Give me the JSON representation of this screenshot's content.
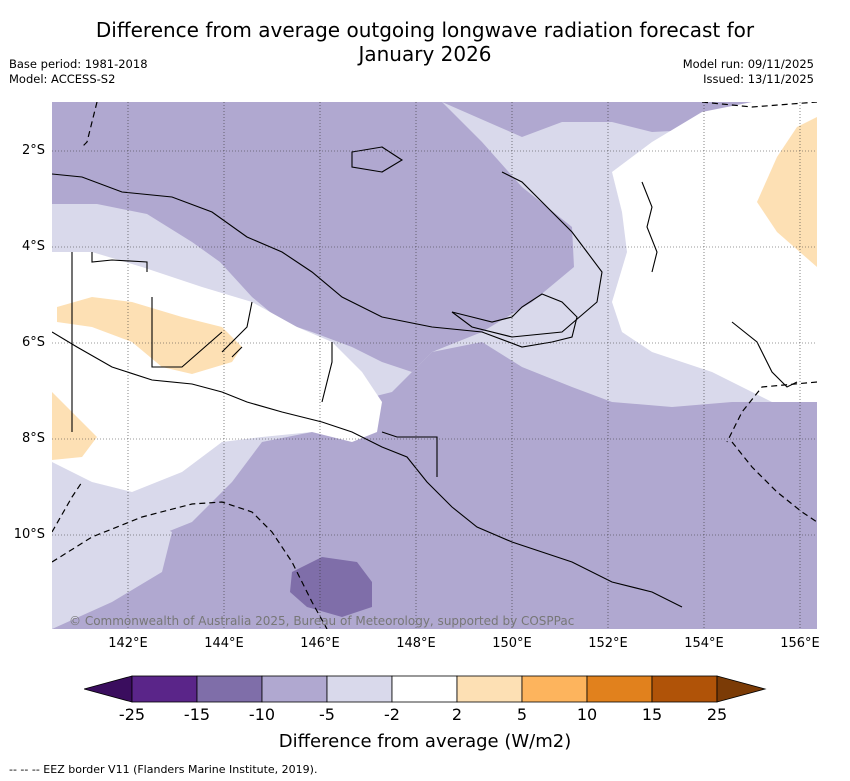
{
  "title": {
    "line1": "Difference from average outgoing longwave radiation forecast for",
    "line2": "January 2026"
  },
  "meta": {
    "base_period": "Base period: 1981-2018",
    "model": "Model: ACCESS-S2",
    "model_run": "Model run: 09/11/2025",
    "issued": "Issued: 13/11/2025"
  },
  "credit": "© Commonwealth of Australia 2025, Bureau of Meteorology, supported by COSPPac",
  "axes": {
    "lon_labels": [
      "142°E",
      "144°E",
      "146°E",
      "148°E",
      "150°E",
      "152°E",
      "154°E",
      "156°E"
    ],
    "lat_labels": [
      "2°S",
      "4°S",
      "6°S",
      "8°S",
      "10°S"
    ]
  },
  "colorbar": {
    "title": "Difference from average (W/m2)",
    "tick_labels": [
      "-25",
      "-15",
      "-10",
      "-5",
      "-2",
      "2",
      "5",
      "10",
      "15",
      "25"
    ],
    "colors": [
      "#5a2589",
      "#7f6ea9",
      "#b0a8d0",
      "#d9d9eb",
      "#ffffff",
      "#fde0b4",
      "#fdb45d",
      "#e1811d",
      "#b05308"
    ],
    "under_color": "#3a0d5e",
    "over_color": "#7b3b06"
  },
  "footer": "--  --  -- EEZ border V11 (Flanders Marine Institute, 2019)."
}
